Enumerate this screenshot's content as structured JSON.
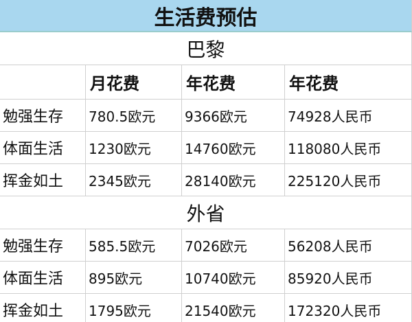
{
  "title": "生活费预估",
  "sections": [
    {
      "name": "巴黎",
      "columns": [
        "月花费",
        "年花费",
        "年花费"
      ],
      "rows": [
        [
          "勉强生存",
          "780.5欧元",
          "9366欧元",
          "74928人民币"
        ],
        [
          "体面生活",
          "1230欧元",
          "14760欧元",
          "118080人民币"
        ],
        [
          "挥金如土",
          "2345欧元",
          "28140欧元",
          "225120人民币"
        ]
      ]
    },
    {
      "name": "外省",
      "rows": [
        [
          "勉强生存",
          "585.5欧元",
          "7026欧元",
          "56208人民币"
        ],
        [
          "体面生活",
          "895欧元",
          "10740欧元",
          "85920人民币"
        ],
        [
          "挥金如土",
          "1795欧元",
          "21540欧元",
          "172320人民币"
        ]
      ]
    }
  ]
}
